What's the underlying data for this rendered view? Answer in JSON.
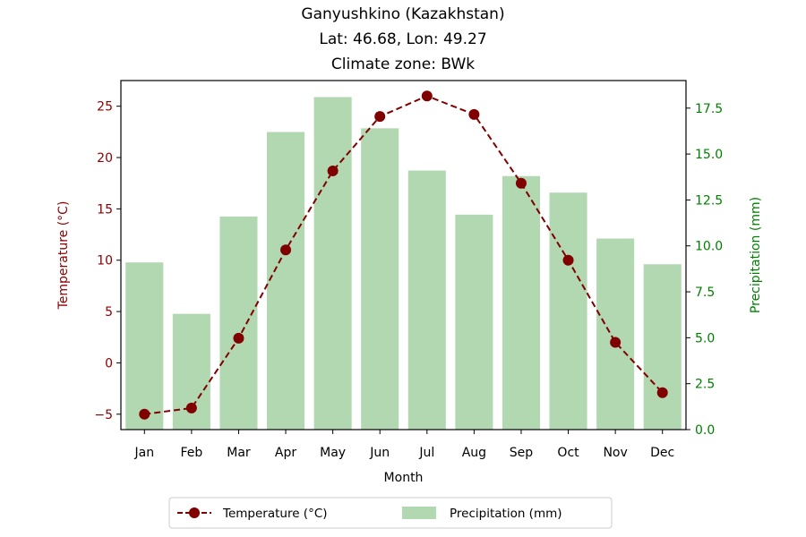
{
  "chart_data": {
    "type": "bar+line",
    "title": [
      "Ganyushkino (Kazakhstan)",
      "Lat: 46.68, Lon: 49.27",
      "Climate zone: BWk"
    ],
    "xlabel": "Month",
    "ylabel_left": "Temperature (°C)",
    "ylabel_right": "Precipitation (mm)",
    "categories": [
      "Jan",
      "Feb",
      "Mar",
      "Apr",
      "May",
      "Jun",
      "Jul",
      "Aug",
      "Sep",
      "Oct",
      "Nov",
      "Dec"
    ],
    "temperature": {
      "name": "Temperature (°C)",
      "values": [
        -5.0,
        -4.4,
        2.4,
        11.0,
        18.7,
        24.0,
        26.0,
        24.2,
        17.5,
        10.0,
        2.0,
        -2.9
      ],
      "color": "#800000",
      "ylim": [
        -6.5,
        27.5
      ],
      "ticks": [
        -5,
        0,
        5,
        10,
        15,
        20,
        25
      ],
      "tick_labels": [
        "−5",
        "0",
        "5",
        "10",
        "15",
        "20",
        "25"
      ]
    },
    "precipitation": {
      "name": "Precipitation (mm)",
      "values": [
        9.1,
        6.3,
        11.6,
        16.2,
        18.1,
        16.4,
        14.1,
        11.7,
        13.8,
        12.9,
        10.4,
        9.0
      ],
      "color": "#b2d8b2",
      "ylim": [
        0,
        19.0
      ],
      "ticks": [
        0,
        2.5,
        5,
        7.5,
        10,
        12.5,
        15,
        17.5
      ],
      "tick_labels": [
        "0.0",
        "2.5",
        "5.0",
        "7.5",
        "10.0",
        "12.5",
        "15.0",
        "17.5"
      ]
    },
    "left_axis_color": "#8b0000",
    "right_axis_color": "#008000",
    "legend": {
      "position": "bottom-center",
      "labels": [
        "Temperature (°C)",
        "Precipitation (mm)"
      ]
    }
  }
}
